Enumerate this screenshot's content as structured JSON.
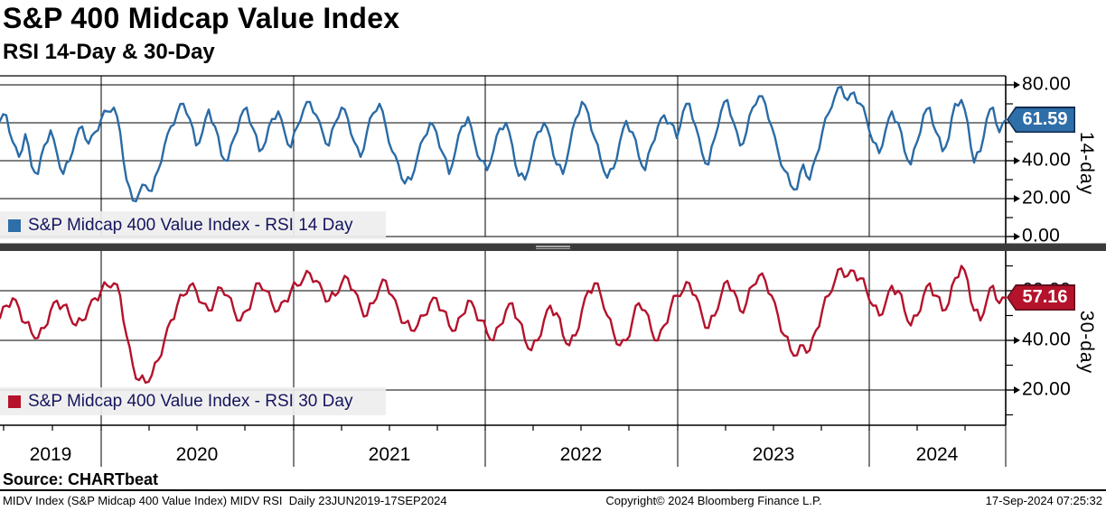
{
  "header": {
    "title": "S&P 400 Midcap Value Index",
    "subtitle": "RSI 14-Day & 30-Day"
  },
  "source_line": "Source: CHARTbeat",
  "footer": {
    "left": "MIDV Index (S&P Midcap 400 Value Index) MIDV RSI  Daily 23JUN2019-17SEP2024",
    "center": "Copyright© 2024 Bloomberg Finance L.P.",
    "right": "17-Sep-2024 07:25:32"
  },
  "colors": {
    "rsi14_line": "#2A6BA6",
    "rsi30_line": "#B4122C",
    "badge14_fill": "#2E6EA9",
    "badge14_border": "#0F2B4E",
    "badge30_fill": "#B5122B",
    "badge30_border": "#5E0E1C",
    "grid": "#000000",
    "divider": "#3B3B3B",
    "legend_bg": "#EEEEEE",
    "legend_text": "#15155E"
  },
  "chart_data": {
    "type": "line",
    "x_range": {
      "start": "23JUN2019",
      "end": "17SEP2024",
      "frequency": "Daily"
    },
    "x_year_labels": [
      "2019",
      "2020",
      "2021",
      "2022",
      "2023",
      "2024"
    ],
    "grid": "on",
    "panels": [
      {
        "name": "RSI 14 Day",
        "legend_label": "S&P Midcap 400 Value Index - RSI 14 Day",
        "side_label": "14-day",
        "last_value": 61.59,
        "last_value_label": "61.59",
        "ylim": [
          0,
          85
        ],
        "y_ticks_major": [
          0,
          20,
          40,
          60,
          80
        ],
        "y_tick_labels": [
          "0.00",
          "20.00",
          "40.00",
          "60.00",
          "80.00"
        ],
        "y_ticks_minor": [
          10,
          30,
          50,
          70
        ],
        "values": [
          61,
          64,
          50,
          42,
          54,
          37,
          33,
          48,
          56,
          44,
          33,
          40,
          52,
          58,
          49,
          55,
          62,
          66,
          68,
          55,
          30,
          19,
          23,
          27,
          24,
          35,
          48,
          58,
          65,
          70,
          62,
          48,
          55,
          67,
          58,
          43,
          40,
          52,
          63,
          68,
          57,
          45,
          50,
          62,
          66,
          55,
          47,
          58,
          67,
          71,
          64,
          55,
          48,
          60,
          68,
          62,
          50,
          42,
          55,
          65,
          70,
          58,
          45,
          38,
          28,
          30,
          42,
          52,
          60,
          55,
          44,
          33,
          45,
          58,
          63,
          50,
          40,
          35,
          45,
          57,
          60,
          48,
          32,
          30,
          42,
          55,
          60,
          52,
          38,
          33,
          47,
          62,
          71,
          65,
          52,
          40,
          31,
          36,
          50,
          61,
          55,
          42,
          35,
          48,
          58,
          64,
          60,
          52,
          66,
          70,
          58,
          44,
          38,
          52,
          66,
          72,
          60,
          48,
          55,
          68,
          74,
          70,
          58,
          45,
          35,
          27,
          25,
          38,
          30,
          42,
          55,
          65,
          74,
          79,
          72,
          76,
          70,
          62,
          50,
          44,
          56,
          66,
          60,
          45,
          38,
          50,
          64,
          68,
          55,
          45,
          52,
          70,
          72,
          60,
          39,
          45,
          62,
          68,
          55,
          61.59
        ]
      },
      {
        "name": "RSI 30 Day",
        "legend_label": "S&P Midcap 400 Value Index - RSI 30 Day",
        "side_label": "30-day",
        "last_value": 57.16,
        "last_value_label": "57.16",
        "ylim": [
          5,
          76
        ],
        "y_ticks_major": [
          20,
          40,
          60
        ],
        "y_tick_labels": [
          "20.00",
          "40.00",
          "60.00"
        ],
        "y_ticks_minor": [
          10,
          30,
          50,
          70
        ],
        "values": [
          49,
          54,
          57,
          53,
          47,
          43,
          41,
          45,
          52,
          56,
          54,
          50,
          46,
          48,
          53,
          57,
          60,
          62,
          63,
          58,
          42,
          30,
          24,
          23,
          26,
          32,
          40,
          48,
          54,
          58,
          62,
          60,
          55,
          52,
          57,
          61,
          58,
          52,
          48,
          52,
          58,
          63,
          60,
          55,
          52,
          56,
          60,
          62,
          65,
          67,
          64,
          60,
          56,
          58,
          63,
          65,
          60,
          54,
          50,
          55,
          61,
          64,
          58,
          52,
          47,
          44,
          46,
          50,
          55,
          57,
          52,
          46,
          44,
          50,
          56,
          53,
          48,
          43,
          40,
          46,
          52,
          55,
          48,
          40,
          36,
          40,
          48,
          54,
          51,
          42,
          38,
          42,
          52,
          60,
          63,
          58,
          50,
          43,
          38,
          40,
          48,
          55,
          52,
          44,
          40,
          46,
          53,
          58,
          60,
          63,
          58,
          50,
          45,
          50,
          58,
          64,
          60,
          52,
          55,
          62,
          66,
          64,
          58,
          50,
          42,
          36,
          34,
          38,
          36,
          44,
          52,
          58,
          64,
          69,
          66,
          68,
          65,
          60,
          54,
          50,
          55,
          62,
          60,
          52,
          46,
          50,
          58,
          63,
          58,
          52,
          55,
          65,
          70,
          64,
          52,
          48,
          56,
          62,
          55,
          57.16
        ]
      }
    ]
  }
}
